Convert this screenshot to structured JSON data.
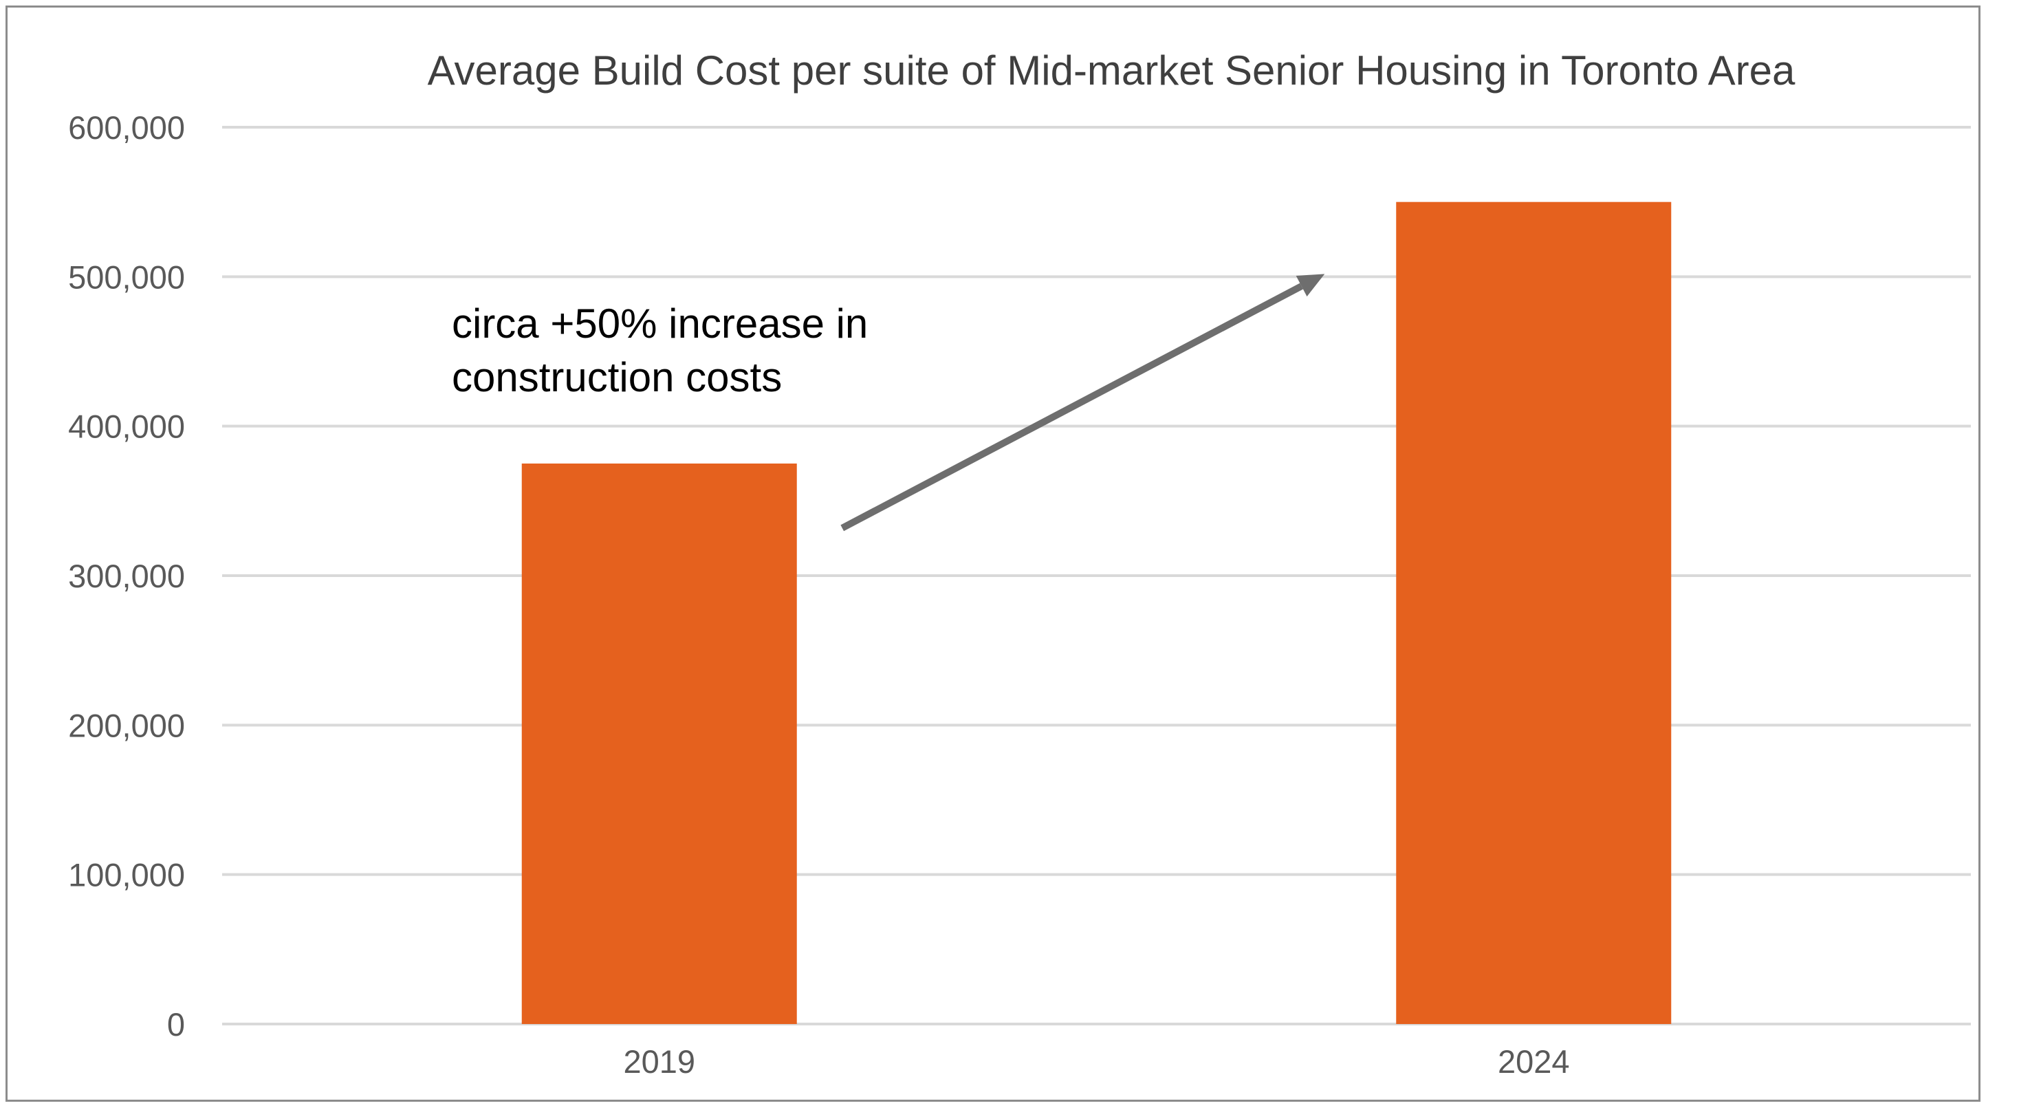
{
  "chart_data": {
    "type": "bar",
    "title": "Average Build Cost per suite of Mid-market Senior Housing in Toronto Area",
    "xlabel": "",
    "ylabel": "",
    "categories": [
      "2019",
      "2024"
    ],
    "values": [
      375000,
      550000
    ],
    "ylim": [
      0,
      600000
    ],
    "yticks": [
      "0",
      "100,000",
      "200,000",
      "300,000",
      "400,000",
      "500,000",
      "600,000"
    ],
    "ytick_values": [
      0,
      100000,
      200000,
      300000,
      400000,
      500000,
      600000
    ],
    "grid": true,
    "legend": "none",
    "bar_color": "#E5611E",
    "gridline_color": "#D9D9D9",
    "arrow_color": "#6E6E6E",
    "annotation": {
      "lines": [
        "circa +50% increase in",
        "construction costs"
      ],
      "arrow_from": {
        "x": "2019",
        "y": 330000
      },
      "arrow_to": {
        "x": "2024",
        "y": 500000
      }
    }
  }
}
